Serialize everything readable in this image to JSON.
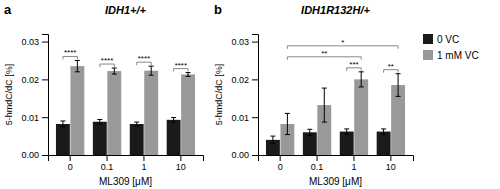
{
  "chart_data": [
    {
      "type": "bar",
      "panel_label": "a",
      "title": "IDH1+/+",
      "xlabel": "ML309 [μM]",
      "ylabel": "5-hmdC/dC [%]",
      "categories": [
        "0",
        "0.1",
        "1",
        "10"
      ],
      "series": [
        {
          "color": "#1a1a1a",
          "values": [
            0.0082,
            0.0088,
            0.0082,
            0.0093
          ],
          "errors": [
            0.0008,
            0.0006,
            0.0005,
            0.0006
          ]
        },
        {
          "color": "#999999",
          "values": [
            0.0235,
            0.0222,
            0.0223,
            0.0213
          ],
          "errors": [
            0.0015,
            0.0008,
            0.0012,
            0.0005
          ]
        }
      ],
      "ylim": [
        0,
        0.032
      ],
      "yticks": [
        {
          "value": 0,
          "label": "0.00"
        },
        0.01,
        0.02,
        0.03
      ],
      "annotations": [
        {
          "text": "****",
          "category": "0"
        },
        {
          "text": "****",
          "category": "0.1"
        },
        {
          "text": "****",
          "category": "1"
        },
        {
          "text": "****",
          "category": "10"
        }
      ]
    },
    {
      "type": "bar",
      "panel_label": "b",
      "title": "IDH1R132H/+",
      "xlabel": "ML309 [μM]",
      "ylabel": "5-hmdC/dC [%]",
      "categories": [
        "0",
        "0.1",
        "1",
        "10"
      ],
      "series": [
        {
          "name": "0 VC",
          "color": "#1a1a1a",
          "values": [
            0.004,
            0.006,
            0.0062,
            0.0062
          ],
          "errors": [
            0.001,
            0.0008,
            0.0007,
            0.0007
          ]
        },
        {
          "name": "1 mM VC",
          "color": "#999999",
          "values": [
            0.0082,
            0.0132,
            0.02,
            0.0185
          ],
          "errors": [
            0.0028,
            0.0045,
            0.002,
            0.003
          ]
        }
      ],
      "ylim": [
        0,
        0.032
      ],
      "yticks": [
        {
          "value": 0,
          "label": "0.00"
        },
        0.01,
        0.02,
        0.03
      ],
      "legend": "right",
      "annotations": [
        {
          "text": "***",
          "category": "1"
        },
        {
          "text": "**",
          "category": "10"
        },
        {
          "text": "**",
          "from": "0",
          "to": "1"
        },
        {
          "text": "*",
          "from": "0",
          "to": "10"
        }
      ]
    }
  ]
}
